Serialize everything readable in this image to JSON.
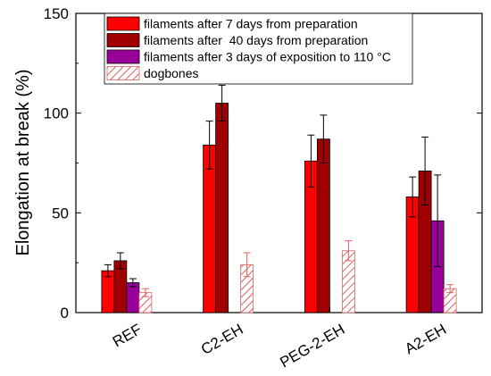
{
  "chart_data": {
    "type": "bar",
    "title": "",
    "xlabel": "",
    "ylabel": "Elongation at break (%)",
    "ylim": [
      0,
      150
    ],
    "yticks": [
      0,
      50,
      100,
      150
    ],
    "grid": false,
    "legend_position": "top",
    "categories": [
      "REF",
      "C2-EH",
      "PEG-2-EH",
      "A2-EH"
    ],
    "series": [
      {
        "name": "filaments after 7 days from preparation",
        "color": "#ff0000",
        "pattern": "solid",
        "values": [
          21,
          84,
          76,
          58
        ],
        "errors": [
          3,
          12,
          13,
          10
        ]
      },
      {
        "name": "filaments after  40 days from preparation",
        "color": "#a00000",
        "pattern": "solid",
        "values": [
          26,
          105,
          87,
          71
        ],
        "errors": [
          4,
          9,
          12,
          17
        ]
      },
      {
        "name": "filaments after 3 days of exposition to 110 °C",
        "color": "#990099",
        "pattern": "solid",
        "values": [
          15,
          null,
          null,
          46
        ],
        "errors": [
          2,
          null,
          null,
          23
        ]
      },
      {
        "name": "dogbones",
        "color": "#e06060",
        "pattern": "hatched",
        "values": [
          10,
          24,
          31,
          12
        ],
        "errors": [
          2,
          6,
          5,
          2
        ]
      }
    ]
  }
}
